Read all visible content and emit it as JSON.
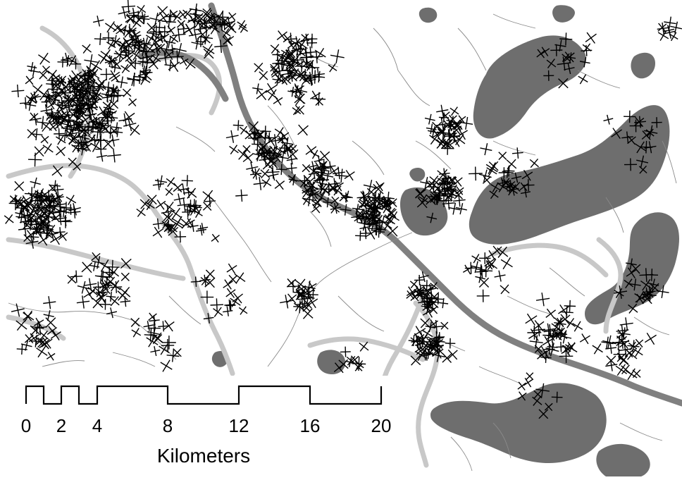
{
  "map": {
    "colors": {
      "background": "#ffffff",
      "lake": "#6e6e6e",
      "major_road": "#808080",
      "secondary_road": "#c8c8c8",
      "streams": "#8a8a8a",
      "markers": "#000000"
    }
  },
  "scalebar": {
    "units": "Kilometers",
    "ticks": [
      "0",
      "2",
      "4",
      "8",
      "12",
      "16",
      "20"
    ]
  }
}
